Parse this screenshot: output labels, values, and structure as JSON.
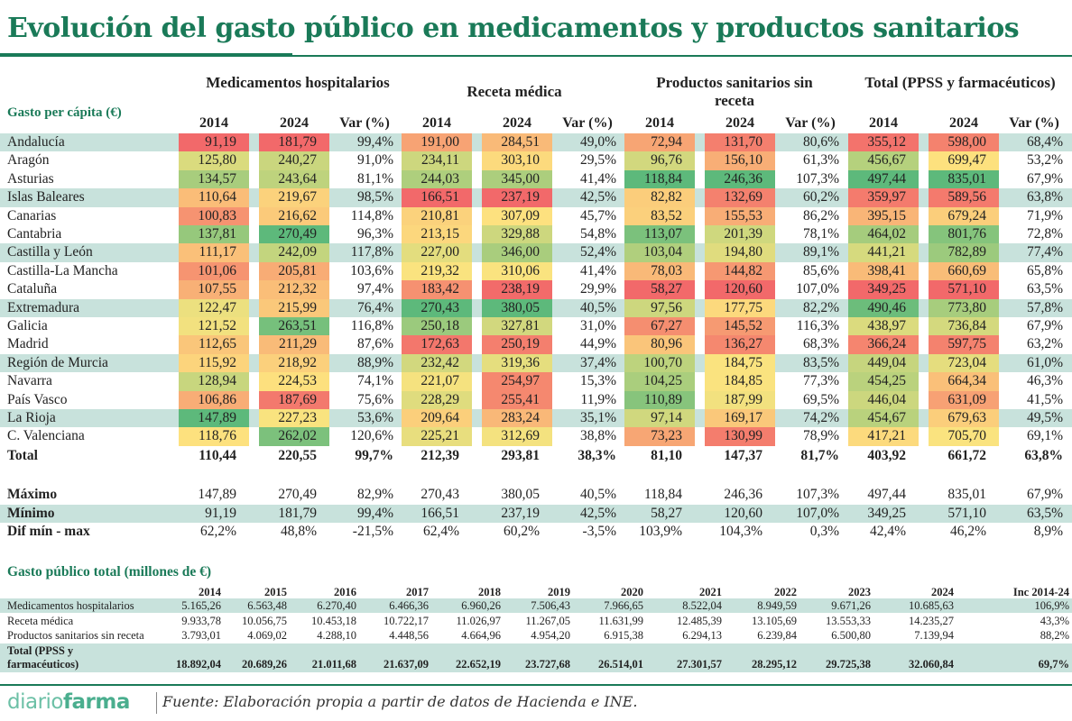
{
  "title": "Evolución del gasto público en medicamentos y productos sanitarios",
  "colors": {
    "brand_green": "#1a7a58",
    "band": "#c8e2dc",
    "scale_low": "#f2696a",
    "scale_mid": "#fde47f",
    "scale_high": "#5db97b"
  },
  "chart_data": [
    {
      "type": "table",
      "title": "Gasto per cápita (€)",
      "groups": [
        "Medicamentos hospitalarios",
        "Receta médica",
        "Productos sanitarios sin receta",
        "Total (PPSS y farmacéuticos)"
      ],
      "columns": [
        "2014",
        "2024",
        "Var (%)"
      ],
      "color_scale": "red-yellow-green per column (low to high) on 2014 and 2024 values",
      "rows": [
        {
          "region": "Andalucía",
          "values": [
            "91,19",
            "181,79",
            "99,4%",
            "191,00",
            "284,51",
            "49,0%",
            "72,94",
            "131,70",
            "80,6%",
            "355,12",
            "598,00",
            "68,4%"
          ]
        },
        {
          "region": "Aragón",
          "values": [
            "125,80",
            "240,27",
            "91,0%",
            "234,11",
            "303,10",
            "29,5%",
            "96,76",
            "156,10",
            "61,3%",
            "456,67",
            "699,47",
            "53,2%"
          ]
        },
        {
          "region": "Asturias",
          "values": [
            "134,57",
            "243,64",
            "81,1%",
            "244,03",
            "345,00",
            "41,4%",
            "118,84",
            "246,36",
            "107,3%",
            "497,44",
            "835,01",
            "67,9%"
          ]
        },
        {
          "region": "Islas Baleares",
          "values": [
            "110,64",
            "219,67",
            "98,5%",
            "166,51",
            "237,19",
            "42,5%",
            "82,82",
            "132,69",
            "60,2%",
            "359,97",
            "589,56",
            "63,8%"
          ]
        },
        {
          "region": "Canarias",
          "values": [
            "100,83",
            "216,62",
            "114,8%",
            "210,81",
            "307,09",
            "45,7%",
            "83,52",
            "155,53",
            "86,2%",
            "395,15",
            "679,24",
            "71,9%"
          ]
        },
        {
          "region": "Cantabria",
          "values": [
            "137,81",
            "270,49",
            "96,3%",
            "213,15",
            "329,88",
            "54,8%",
            "113,07",
            "201,39",
            "78,1%",
            "464,02",
            "801,76",
            "72,8%"
          ]
        },
        {
          "region": "Castilla y León",
          "values": [
            "111,17",
            "242,09",
            "117,8%",
            "227,00",
            "346,00",
            "52,4%",
            "103,04",
            "194,80",
            "89,1%",
            "441,21",
            "782,89",
            "77,4%"
          ]
        },
        {
          "region": "Castilla-La Mancha",
          "values": [
            "101,06",
            "205,81",
            "103,6%",
            "219,32",
            "310,06",
            "41,4%",
            "78,03",
            "144,82",
            "85,6%",
            "398,41",
            "660,69",
            "65,8%"
          ]
        },
        {
          "region": "Cataluña",
          "values": [
            "107,55",
            "212,32",
            "97,4%",
            "183,42",
            "238,19",
            "29,9%",
            "58,27",
            "120,60",
            "107,0%",
            "349,25",
            "571,10",
            "63,5%"
          ]
        },
        {
          "region": "Extremadura",
          "values": [
            "122,47",
            "215,99",
            "76,4%",
            "270,43",
            "380,05",
            "40,5%",
            "97,56",
            "177,75",
            "82,2%",
            "490,46",
            "773,80",
            "57,8%"
          ]
        },
        {
          "region": "Galicia",
          "values": [
            "121,52",
            "263,51",
            "116,8%",
            "250,18",
            "327,81",
            "31,0%",
            "67,27",
            "145,52",
            "116,3%",
            "438,97",
            "736,84",
            "67,9%"
          ]
        },
        {
          "region": "Madrid",
          "values": [
            "112,65",
            "211,29",
            "87,6%",
            "172,63",
            "250,19",
            "44,9%",
            "80,96",
            "136,27",
            "68,3%",
            "366,24",
            "597,75",
            "63,2%"
          ]
        },
        {
          "region": "Región de Murcia",
          "values": [
            "115,92",
            "218,92",
            "88,9%",
            "232,42",
            "319,36",
            "37,4%",
            "100,70",
            "184,75",
            "83,5%",
            "449,04",
            "723,04",
            "61,0%"
          ]
        },
        {
          "region": "Navarra",
          "values": [
            "128,94",
            "224,53",
            "74,1%",
            "221,07",
            "254,97",
            "15,3%",
            "104,25",
            "184,85",
            "77,3%",
            "454,25",
            "664,34",
            "46,3%"
          ]
        },
        {
          "region": "País Vasco",
          "values": [
            "106,86",
            "187,69",
            "75,6%",
            "228,29",
            "255,41",
            "11,9%",
            "110,89",
            "187,99",
            "69,5%",
            "446,04",
            "631,09",
            "41,5%"
          ]
        },
        {
          "region": "La Rioja",
          "values": [
            "147,89",
            "227,23",
            "53,6%",
            "209,64",
            "283,24",
            "35,1%",
            "97,14",
            "169,17",
            "74,2%",
            "454,67",
            "679,63",
            "49,5%"
          ]
        },
        {
          "region": "C. Valenciana",
          "values": [
            "118,76",
            "262,02",
            "120,6%",
            "225,21",
            "312,69",
            "38,8%",
            "73,23",
            "130,99",
            "78,9%",
            "417,21",
            "705,70",
            "69,1%"
          ]
        }
      ],
      "total": {
        "label": "Total",
        "values": [
          "110,44",
          "220,55",
          "99,7%",
          "212,39",
          "293,81",
          "38,3%",
          "81,10",
          "147,37",
          "81,7%",
          "403,92",
          "661,72",
          "63,8%"
        ]
      },
      "stats": [
        {
          "label": "Máximo",
          "values": [
            "147,89",
            "270,49",
            "82,9%",
            "270,43",
            "380,05",
            "40,5%",
            "118,84",
            "246,36",
            "107,3%",
            "497,44",
            "835,01",
            "67,9%"
          ]
        },
        {
          "label": "Mínimo",
          "values": [
            "91,19",
            "181,79",
            "99,4%",
            "166,51",
            "237,19",
            "42,5%",
            "58,27",
            "120,60",
            "107,0%",
            "349,25",
            "571,10",
            "63,5%"
          ]
        },
        {
          "label": "Dif mín - max",
          "values": [
            "62,2%",
            "48,8%",
            "-21,5%",
            "62,4%",
            "60,2%",
            "-3,5%",
            "103,9%",
            "104,3%",
            "0,3%",
            "42,4%",
            "46,2%",
            "8,9%"
          ]
        }
      ]
    },
    {
      "type": "table",
      "title": "Gasto público total (millones de €)",
      "columns": [
        "2014",
        "2015",
        "2016",
        "2017",
        "2018",
        "2019",
        "2020",
        "2021",
        "2022",
        "2023",
        "2024",
        "Inc 2014-24"
      ],
      "rows": [
        {
          "label": "Medicamentos hospitalarios",
          "values": [
            "5.165,26",
            "6.563,48",
            "6.270,40",
            "6.466,36",
            "6.960,26",
            "7.506,43",
            "7.966,65",
            "8.522,04",
            "8.949,59",
            "9.671,26",
            "10.685,63",
            "106,9%"
          ]
        },
        {
          "label": "Receta médica",
          "values": [
            "9.933,78",
            "10.056,75",
            "10.453,18",
            "10.722,17",
            "11.026,97",
            "11.267,05",
            "11.631,99",
            "12.485,39",
            "13.105,69",
            "13.553,33",
            "14.235,27",
            "43,3%"
          ]
        },
        {
          "label": "Productos sanitarios sin receta",
          "values": [
            "3.793,01",
            "4.069,02",
            "4.288,10",
            "4.448,56",
            "4.664,96",
            "4.954,20",
            "6.915,38",
            "6.294,13",
            "6.239,84",
            "6.500,80",
            "7.139,94",
            "88,2%"
          ]
        },
        {
          "label": "Total (PPSS y farmacéuticos)",
          "values": [
            "18.892,04",
            "20.689,26",
            "21.011,68",
            "21.637,09",
            "22.652,19",
            "23.727,68",
            "26.514,01",
            "27.301,57",
            "28.295,12",
            "29.725,38",
            "32.060,84",
            "69,7%"
          ]
        }
      ]
    }
  ],
  "footer": {
    "logo_part1": "diario",
    "logo_part2": "farma",
    "source": "Fuente: Elaboración propia a partir de datos de Hacienda e INE."
  }
}
